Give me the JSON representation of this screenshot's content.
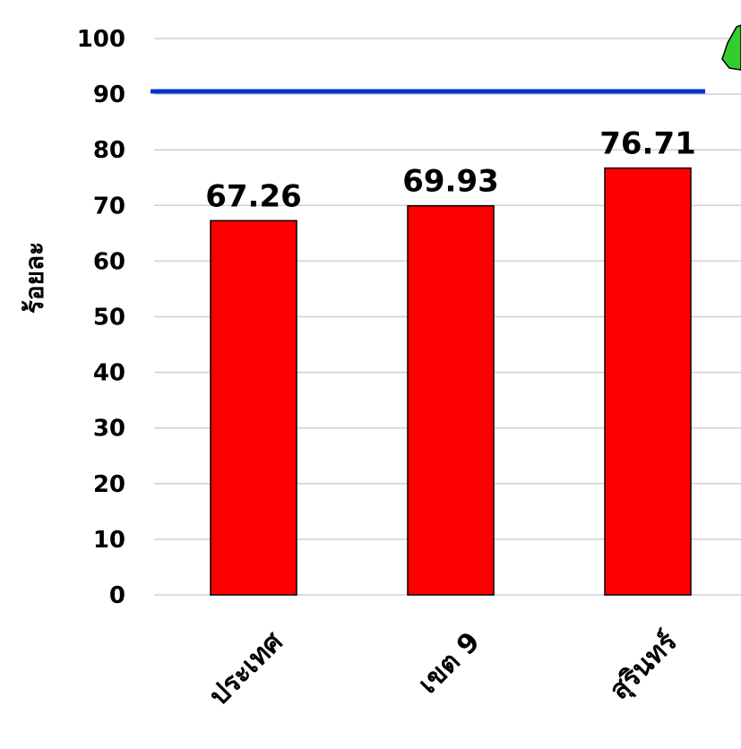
{
  "chart_data": {
    "type": "bar",
    "categories": [
      "ประเทศ",
      "เขต 9",
      "สุรินทร์"
    ],
    "values": [
      67.26,
      69.93,
      76.71
    ],
    "data_labels": [
      "67.26",
      "69.93",
      "76.71"
    ],
    "ylabel": "ร้อยละ",
    "ylim": [
      0,
      100
    ],
    "yticks": [
      0,
      10,
      20,
      30,
      40,
      50,
      60,
      70,
      80,
      90,
      100
    ],
    "target_line": {
      "value": 90.5,
      "color": "#0033cc"
    },
    "bar_color": "#ff0000",
    "grid": true,
    "legend": "none"
  }
}
